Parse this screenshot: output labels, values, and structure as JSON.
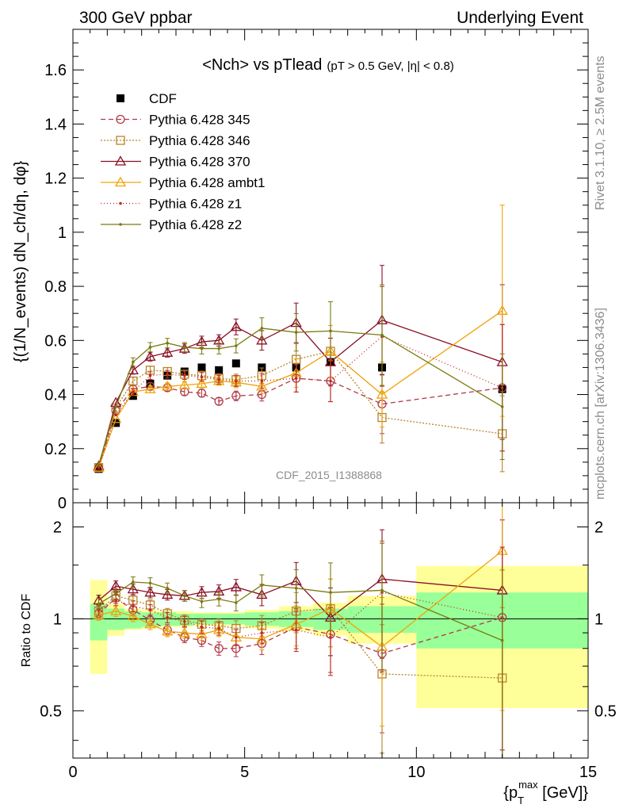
{
  "header": {
    "left": "300 GeV ppbar",
    "right": "Underlying Event"
  },
  "side_labels": {
    "top": "Rivet 3.1.10, ≥ 2.5M events",
    "bottom": "mcplots.cern.ch [arXiv:1306.3436]"
  },
  "chart_data": [
    {
      "type": "line",
      "title": "<N_ch> vs p_T^lead (p_T > 0.5 GeV, |η| < 0.8)",
      "title_main": "<Nch> vs pTlead",
      "title_cut": "(pT > 0.5 GeV, |η| < 0.8)",
      "ylabel": "{(1/N_events) dN_ch/dη, dφ}",
      "watermark": "CDF_2015_I1388868",
      "xlim": [
        0,
        15
      ],
      "ylim": [
        0,
        1.75
      ],
      "yticks": [
        0,
        0.2,
        0.4,
        0.6,
        0.8,
        1,
        1.2,
        1.4,
        1.6
      ],
      "ytick_labels": [
        "0",
        "0.2",
        "0.4",
        "0.6",
        "0.8",
        "1",
        "1.2",
        "1.4",
        "1.6"
      ],
      "legend_position": "top-left",
      "x": [
        0.75,
        1.25,
        1.75,
        2.25,
        2.75,
        3.25,
        3.75,
        4.25,
        4.75,
        5.5,
        6.5,
        7.5,
        9.0,
        12.5
      ],
      "series": [
        {
          "name": "CDF",
          "color": "#000000",
          "marker": "square-filled",
          "dash": "none",
          "values": [
            0.125,
            0.295,
            0.395,
            0.44,
            0.47,
            0.485,
            0.5,
            0.49,
            0.515,
            0.5,
            0.5,
            0.52,
            0.5,
            0.42
          ]
        },
        {
          "name": "Pythia 6.428 345",
          "color": "#b03a48",
          "marker": "circle",
          "dash": "6,4",
          "values": [
            0.13,
            0.34,
            0.42,
            0.43,
            0.425,
            0.41,
            0.405,
            0.375,
            0.395,
            0.4,
            0.46,
            0.45,
            0.365,
            0.425
          ]
        },
        {
          "name": "Pythia 6.428 346",
          "color": "#b8842a",
          "marker": "square",
          "dash": "2,2",
          "values": [
            0.13,
            0.35,
            0.45,
            0.49,
            0.485,
            0.475,
            0.47,
            0.46,
            0.455,
            0.47,
            0.53,
            0.56,
            0.315,
            0.255
          ]
        },
        {
          "name": "Pythia 6.428 370",
          "color": "#8b0f25",
          "marker": "triangle",
          "dash": "none",
          "values": [
            0.135,
            0.37,
            0.49,
            0.54,
            0.555,
            0.57,
            0.595,
            0.6,
            0.65,
            0.6,
            0.665,
            0.52,
            0.675,
            0.52
          ]
        },
        {
          "name": "Pythia 6.428 ambt1",
          "color": "#f0a30a",
          "marker": "triangle",
          "dash": "none",
          "values": [
            0.13,
            0.31,
            0.41,
            0.42,
            0.43,
            0.435,
            0.44,
            0.45,
            0.445,
            0.43,
            0.48,
            0.56,
            0.4,
            0.71
          ]
        },
        {
          "name": "Pythia 6.428 z1",
          "color": "#c0281e",
          "marker": "dot",
          "dash": "1,3",
          "values": [
            0.13,
            0.325,
            0.41,
            0.47,
            0.475,
            0.47,
            0.465,
            0.455,
            0.45,
            0.45,
            0.46,
            0.45,
            0.615,
            0.425
          ]
        },
        {
          "name": "Pythia 6.428 z2",
          "color": "#7a7a10",
          "marker": "dot",
          "dash": "none",
          "values": [
            0.14,
            0.355,
            0.52,
            0.575,
            0.59,
            0.575,
            0.57,
            0.57,
            0.58,
            0.645,
            0.63,
            0.635,
            0.62,
            0.355
          ]
        }
      ]
    },
    {
      "type": "line",
      "title": "Ratio",
      "ylabel": "Ratio to CDF",
      "xlabel": "{p_T^max [GeV]}",
      "xlabel_main": "{p",
      "xlabel_sub": "T",
      "xlabel_sup": "max",
      "xlabel_tail": " [GeV]}",
      "xlim": [
        0,
        15
      ],
      "ylim": [
        0.35,
        2.4
      ],
      "log_y": true,
      "xticks": [
        0,
        5,
        10,
        15
      ],
      "xtick_labels": [
        "0",
        "5",
        "10",
        "15"
      ],
      "yticks": [
        0.5,
        1,
        2
      ],
      "ytick_labels": [
        "0.5",
        "1",
        "2"
      ],
      "x": [
        0.75,
        1.25,
        1.75,
        2.25,
        2.75,
        3.25,
        3.75,
        4.25,
        4.75,
        5.5,
        6.5,
        7.5,
        9.0,
        12.5
      ],
      "series": [
        {
          "name": "Pythia 6.428 345",
          "values": [
            1.04,
            1.17,
            1.07,
            0.99,
            0.92,
            0.87,
            0.85,
            0.8,
            0.8,
            0.83,
            0.94,
            0.89,
            0.77,
            1.01
          ]
        },
        {
          "name": "Pythia 6.428 346",
          "values": [
            1.06,
            1.19,
            1.15,
            1.11,
            1.04,
            0.99,
            0.96,
            0.95,
            0.93,
            0.95,
            1.06,
            1.08,
            0.66,
            0.64
          ]
        },
        {
          "name": "Pythia 6.428 370",
          "values": [
            1.15,
            1.28,
            1.25,
            1.22,
            1.2,
            1.19,
            1.22,
            1.23,
            1.27,
            1.2,
            1.33,
            1.01,
            1.35,
            1.24
          ]
        },
        {
          "name": "Pythia 6.428 ambt1",
          "values": [
            1.03,
            1.06,
            1.02,
            0.96,
            0.91,
            0.9,
            0.89,
            0.92,
            0.87,
            0.86,
            0.96,
            1.08,
            0.81,
            1.67
          ]
        },
        {
          "name": "Pythia 6.428 z1",
          "values": [
            1.07,
            1.15,
            1.1,
            1.07,
            1.01,
            0.98,
            0.94,
            0.93,
            0.87,
            0.9,
            0.92,
            0.87,
            1.22,
            1.01
          ]
        },
        {
          "name": "Pythia 6.428 z2",
          "values": [
            1.12,
            1.21,
            1.32,
            1.31,
            1.26,
            1.19,
            1.14,
            1.16,
            1.13,
            1.29,
            1.26,
            1.22,
            1.24,
            0.85
          ]
        }
      ],
      "bands": {
        "x_edges": [
          0.5,
          1.0,
          1.5,
          2.0,
          2.5,
          3.0,
          3.5,
          4.0,
          4.5,
          5.0,
          6.0,
          7.0,
          8.0,
          10.0,
          15.0
        ],
        "inner": [
          [
            0.85,
            1.12
          ],
          [
            0.92,
            1.08
          ],
          [
            0.93,
            1.06
          ],
          [
            0.94,
            1.05
          ],
          [
            0.95,
            1.05
          ],
          [
            0.95,
            1.04
          ],
          [
            0.96,
            1.04
          ],
          [
            0.96,
            1.04
          ],
          [
            0.96,
            1.04
          ],
          [
            0.95,
            1.05
          ],
          [
            0.94,
            1.06
          ],
          [
            0.92,
            1.08
          ],
          [
            0.9,
            1.1
          ],
          [
            0.8,
            1.22
          ]
        ],
        "outer": [
          [
            0.66,
            1.34
          ],
          [
            0.88,
            1.12
          ],
          [
            0.92,
            1.08
          ],
          [
            0.93,
            1.07
          ],
          [
            0.94,
            1.06
          ],
          [
            0.94,
            1.06
          ],
          [
            0.95,
            1.05
          ],
          [
            0.95,
            1.05
          ],
          [
            0.95,
            1.05
          ],
          [
            0.93,
            1.07
          ],
          [
            0.91,
            1.1
          ],
          [
            0.88,
            1.13
          ],
          [
            0.83,
            1.19
          ],
          [
            0.51,
            1.49
          ]
        ]
      }
    }
  ]
}
